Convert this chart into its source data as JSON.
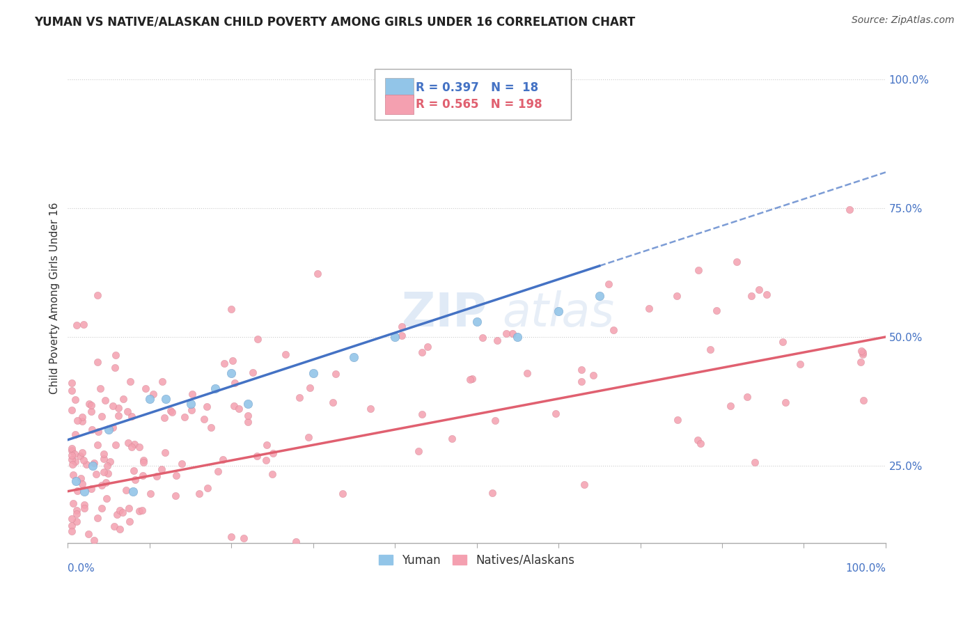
{
  "title": "YUMAN VS NATIVE/ALASKAN CHILD POVERTY AMONG GIRLS UNDER 16 CORRELATION CHART",
  "source": "Source: ZipAtlas.com",
  "ylabel": "Child Poverty Among Girls Under 16",
  "y_tick_labels": [
    "25.0%",
    "50.0%",
    "75.0%",
    "100.0%"
  ],
  "y_tick_values": [
    25,
    50,
    75,
    100
  ],
  "x_tick_values": [
    0,
    10,
    20,
    30,
    40,
    50,
    60,
    70,
    80,
    90,
    100
  ],
  "legend_blue_label": "R = 0.397   N =  18",
  "legend_pink_label": "R = 0.565   N = 198",
  "blue_color": "#92C5E8",
  "pink_color": "#F4A0B0",
  "blue_line_color": "#4472C4",
  "pink_line_color": "#E06070",
  "blue_R": 0.397,
  "pink_R": 0.565,
  "blue_N": 18,
  "pink_N": 198,
  "xlim": [
    0,
    100
  ],
  "ylim": [
    10,
    105
  ],
  "blue_intercept": 30,
  "blue_slope": 0.38,
  "pink_intercept": 18,
  "pink_slope": 0.32
}
